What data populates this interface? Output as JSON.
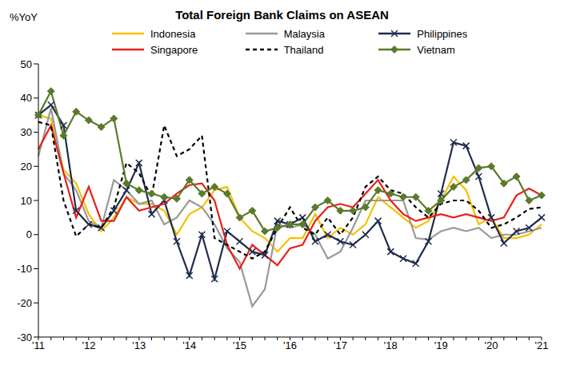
{
  "chart_data": {
    "type": "line",
    "title": "Total Foreign Bank Claims on ASEAN",
    "y_label": "%YoY",
    "categories": [
      "'11",
      null,
      null,
      null,
      "'12",
      null,
      null,
      null,
      "'13",
      null,
      null,
      null,
      "'14",
      null,
      null,
      null,
      "'15",
      null,
      null,
      null,
      "'16",
      null,
      null,
      null,
      "'17",
      null,
      null,
      null,
      "'18",
      null,
      null,
      null,
      "'19",
      null,
      null,
      null,
      "'20",
      null,
      null,
      null,
      "'21"
    ],
    "ylim": [
      -30,
      50
    ],
    "yticks": [
      -30,
      -20,
      -10,
      0,
      10,
      20,
      30,
      40,
      50
    ],
    "grid": false,
    "legend": "top",
    "series": [
      {
        "name": "Indonesia",
        "color": "#f5c000",
        "values": [
          35,
          34,
          19,
          15,
          6,
          1,
          5,
          11,
          9,
          9,
          7,
          0,
          6,
          8,
          13,
          14,
          5,
          1,
          -1,
          -5,
          -1,
          -1,
          6,
          -1,
          2,
          0,
          3,
          11,
          8,
          5,
          2,
          4,
          10,
          17,
          13,
          3,
          5,
          -1,
          -1,
          0,
          3
        ]
      },
      {
        "name": "Malaysia",
        "color": "#999999",
        "values": [
          23,
          37,
          18,
          13,
          4,
          2,
          16,
          13,
          9,
          10,
          3,
          5,
          10,
          8,
          3,
          -4,
          -8,
          -21,
          -16,
          3,
          2,
          3,
          0,
          -7,
          -5,
          2,
          10,
          10,
          10,
          10,
          -1,
          -1.5,
          1,
          2,
          1,
          2,
          -1,
          0,
          0,
          1,
          2
        ]
      },
      {
        "name": "Philippines",
        "color": "#1f2d4d",
        "marker": "x",
        "values": [
          35,
          38,
          32,
          7,
          3,
          2,
          7,
          13,
          21,
          6,
          10,
          -2,
          -12,
          0,
          -13,
          1,
          -2,
          -5,
          -6,
          4,
          3,
          5,
          -2,
          0,
          -2,
          -3,
          0,
          4,
          -5,
          -7,
          -8.5,
          -2,
          12,
          27,
          26,
          17,
          5,
          -2.5,
          1,
          2,
          5
        ]
      },
      {
        "name": "Singapore",
        "color": "#e8201c",
        "values": [
          25,
          32,
          18,
          5,
          14,
          4,
          4,
          11,
          7,
          8,
          9,
          12,
          14.5,
          15,
          10,
          -3,
          -10,
          -3,
          -6,
          -9,
          -4,
          -3,
          4,
          8,
          9,
          8,
          12,
          16,
          10,
          6,
          4,
          5,
          6,
          5,
          6,
          5,
          4,
          5,
          11.5,
          13.5,
          11.5
        ]
      },
      {
        "name": "Thailand",
        "color": "#000000",
        "line_style": "dashed",
        "values": [
          33,
          32,
          10,
          -0.5,
          3,
          2,
          8,
          21,
          18,
          11,
          32,
          23,
          25,
          29,
          -1,
          -3,
          -5,
          -7,
          -5,
          2,
          8,
          2,
          0,
          5,
          0,
          5,
          14,
          17,
          13,
          12,
          8,
          5,
          9,
          10,
          10,
          7,
          2,
          3,
          5,
          7.5,
          8
        ]
      },
      {
        "name": "Vietnam",
        "color": "#5a7a2a",
        "marker": "diamond",
        "values": [
          35,
          42,
          29,
          36,
          33.5,
          31.5,
          34,
          15,
          13,
          12,
          11,
          10.5,
          16,
          12,
          14,
          12,
          5,
          7,
          1,
          2,
          3,
          3,
          8,
          10,
          7,
          7,
          8,
          13,
          12,
          11,
          11,
          7,
          10,
          14,
          16,
          19.5,
          20,
          15,
          17,
          10,
          11.5
        ]
      }
    ]
  }
}
